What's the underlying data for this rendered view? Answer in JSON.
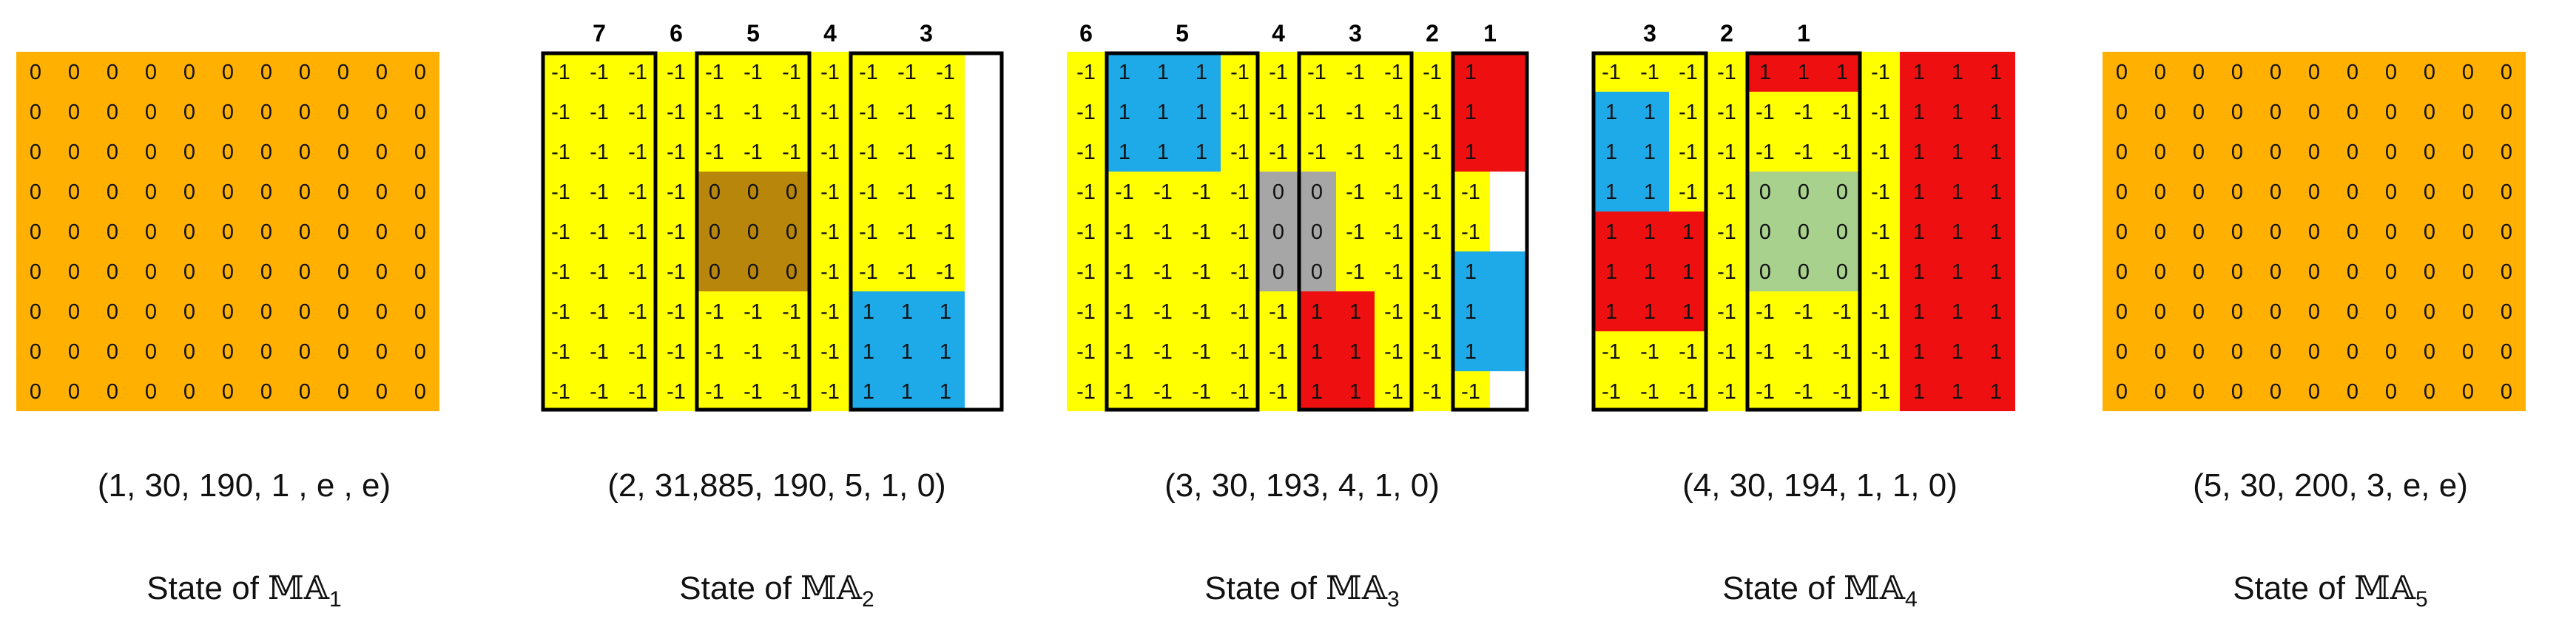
{
  "colors": {
    "orange": "#FFB000",
    "yellow": "#FFFF00",
    "blue": "#1EAAE8",
    "red": "#EE1010",
    "brown": "#B8860B",
    "gray": "#A6A6A6",
    "green": "#A9D18E",
    "border": "#000000"
  },
  "grids": [
    {
      "id": "ma1",
      "default_value": "0",
      "default_color": "orange",
      "regions": [],
      "boxes": [],
      "column_labels": [],
      "tuple": "(1, 30, 190, 1 , e , e)",
      "state_label": {
        "prefix": "State of ",
        "symbol": "MA",
        "index": "1"
      }
    },
    {
      "id": "ma2",
      "default_value": "-1",
      "default_color": "yellow",
      "regions": [
        {
          "r0": 3,
          "r1": 5,
          "c0": 4,
          "c1": 6,
          "value": "0",
          "color": "brown"
        },
        {
          "r0": 6,
          "r1": 8,
          "c0": 8,
          "c1": 10,
          "value": "1",
          "color": "blue"
        }
      ],
      "boxes": [
        {
          "c0": 0,
          "c1": 2,
          "label": "7"
        },
        {
          "c0": 4,
          "c1": 6,
          "label": "5"
        },
        {
          "c0": 8,
          "c1": 11,
          "label": "3"
        }
      ],
      "column_labels": [
        {
          "col": 3,
          "label": "6"
        },
        {
          "col": 7,
          "label": "4"
        }
      ],
      "tuple": "(2, 31,885, 190, 5, 1, 0)",
      "state_label": {
        "prefix": "State of ",
        "symbol": "MA",
        "index": "2"
      }
    },
    {
      "id": "ma3",
      "default_value": "-1",
      "default_color": "yellow",
      "regions": [
        {
          "r0": 0,
          "r1": 2,
          "c0": 1,
          "c1": 3,
          "value": "1",
          "color": "blue"
        },
        {
          "r0": 3,
          "r1": 5,
          "c0": 5,
          "c1": 6,
          "value": "0",
          "color": "gray"
        },
        {
          "r0": 6,
          "r1": 8,
          "c0": 6,
          "c1": 7,
          "value": "1",
          "color": "red"
        },
        {
          "r0": 0,
          "r1": 2,
          "c0": 10,
          "c1": 11,
          "value": "1",
          "color": "red"
        },
        {
          "r0": 5,
          "r1": 7,
          "c0": 10,
          "c1": 11,
          "value": "1",
          "color": "blue"
        }
      ],
      "boxes": [
        {
          "c0": 1,
          "c1": 4,
          "label": "5"
        },
        {
          "c0": 6,
          "c1": 8,
          "label": "3"
        },
        {
          "c0": 10,
          "c1": 11,
          "label": "1"
        }
      ],
      "column_labels": [
        {
          "col": 0,
          "label": "6"
        },
        {
          "col": 5,
          "label": "4"
        },
        {
          "col": 9,
          "label": "2"
        }
      ],
      "tuple": "(3, 30, 193, 4, 1, 0)",
      "state_label": {
        "prefix": "State of ",
        "symbol": "MA",
        "index": "3"
      }
    },
    {
      "id": "ma4",
      "default_value": "-1",
      "default_color": "yellow",
      "regions": [
        {
          "r0": 1,
          "r1": 3,
          "c0": 0,
          "c1": 1,
          "value": "1",
          "color": "blue"
        },
        {
          "r0": 4,
          "r1": 6,
          "c0": 0,
          "c1": 2,
          "value": "1",
          "color": "red"
        },
        {
          "r0": 0,
          "r1": 0,
          "c0": 4,
          "c1": 6,
          "value": "1",
          "color": "red"
        },
        {
          "r0": 3,
          "r1": 5,
          "c0": 4,
          "c1": 6,
          "value": "0",
          "color": "green"
        },
        {
          "r0": 0,
          "r1": 8,
          "c0": 8,
          "c1": 10,
          "value": "1",
          "color": "red"
        }
      ],
      "boxes": [
        {
          "c0": 0,
          "c1": 2,
          "label": "3"
        },
        {
          "c0": 4,
          "c1": 6,
          "label": "1"
        }
      ],
      "column_labels": [
        {
          "col": 3,
          "label": "2"
        }
      ],
      "tuple": "(4, 30, 194, 1, 1, 0)",
      "state_label": {
        "prefix": "State of ",
        "symbol": "MA",
        "index": "4"
      }
    },
    {
      "id": "ma5",
      "default_value": "0",
      "default_color": "orange",
      "regions": [],
      "boxes": [],
      "column_labels": [],
      "tuple": "(5, 30, 200, 3, e, e)",
      "state_label": {
        "prefix": "State of ",
        "symbol": "MA",
        "index": "5"
      }
    }
  ]
}
